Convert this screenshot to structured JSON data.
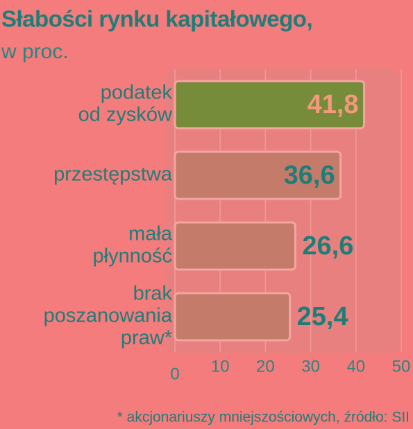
{
  "chart_data": {
    "type": "bar",
    "orientation": "horizontal",
    "title": "Słabości rynku kapitałowego,",
    "subtitle": "w proc.",
    "categories": [
      [
        "podatek",
        "od zysków"
      ],
      [
        "przestępstwa"
      ],
      [
        "mała",
        "płynność"
      ],
      [
        "brak",
        "poszanowania",
        "praw*"
      ]
    ],
    "values": [
      41.8,
      36.6,
      26.6,
      25.4
    ],
    "value_labels": [
      "41,8",
      "36,6",
      "26,6",
      "25,4"
    ],
    "colors": [
      "#768c3a",
      "#c47b6a",
      "#c47b6a",
      "#c47b6a"
    ],
    "label_colors": [
      "#f49a7c",
      "#1f7d78",
      "#1f7d78",
      "#1f7d78"
    ],
    "xlim": [
      0,
      50
    ],
    "xticks": [
      0,
      10,
      20,
      30,
      40,
      50
    ],
    "grid": true,
    "footnote": "* akcjonariuszy mniejszościowych, źródło: SII"
  }
}
